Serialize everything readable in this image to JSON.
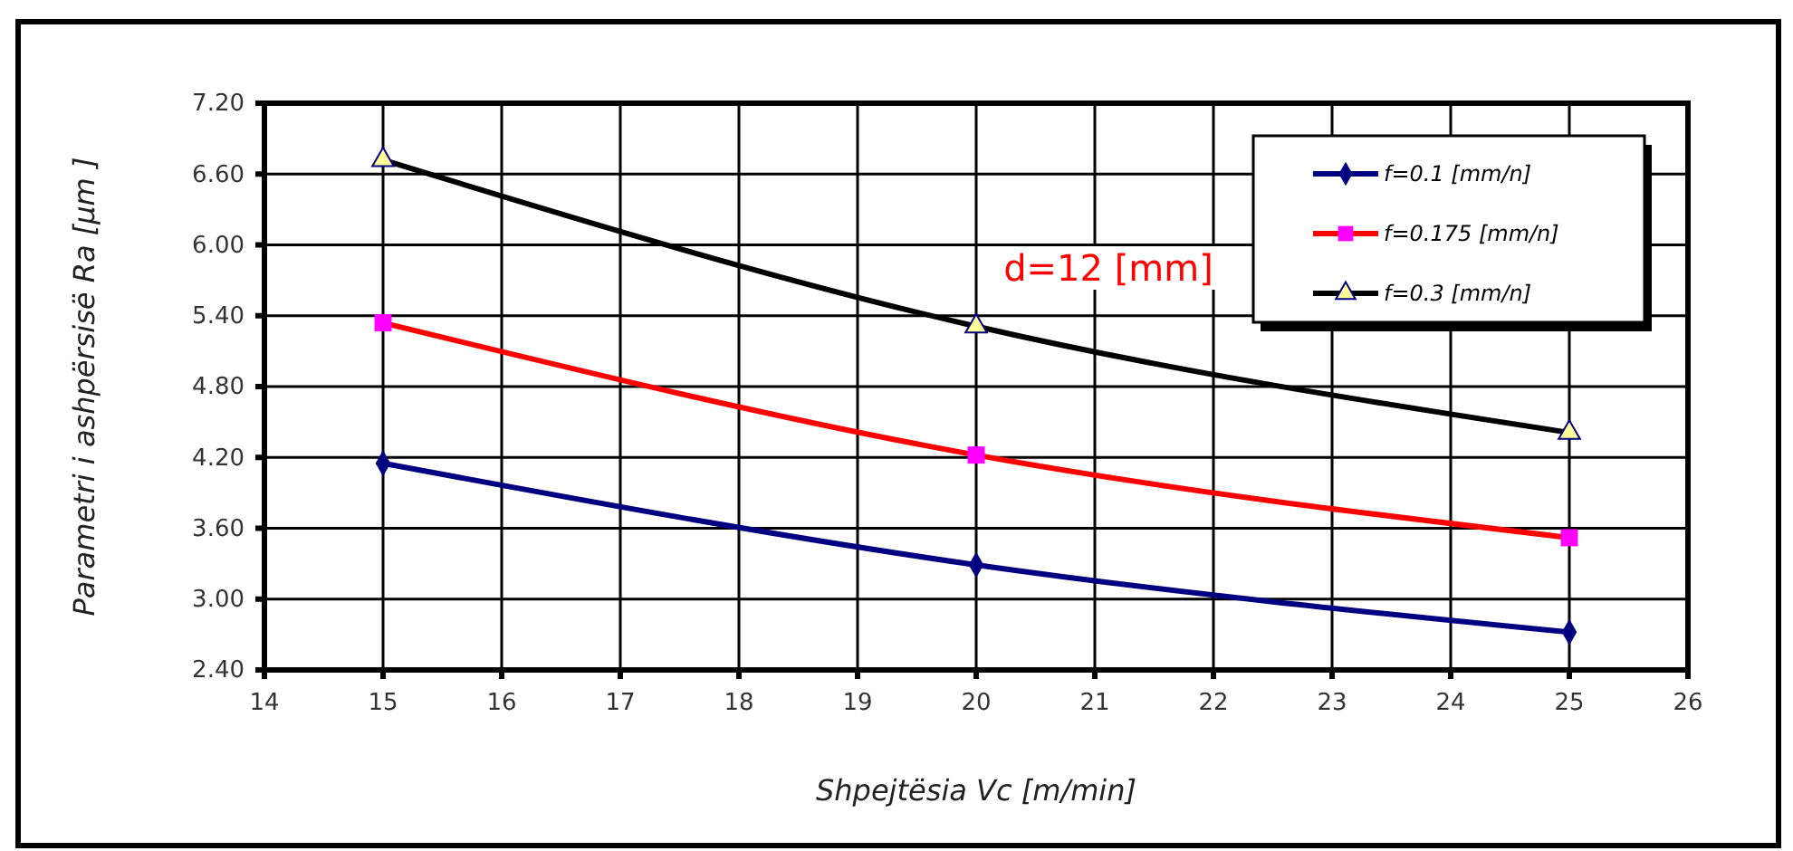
{
  "chart_data": {
    "type": "line",
    "xlabel": "Shpejtësia Vc [m/min]",
    "ylabel": "Parametri i ashpërsisë  Ra  [μm ]",
    "x": [
      15,
      20,
      25
    ],
    "series": [
      {
        "name": "f=0.1 [mm/n]",
        "color": "#000080",
        "marker": "diamond",
        "values": [
          4.15,
          3.29,
          2.72
        ]
      },
      {
        "name": "f=0.175 [mm/n]",
        "color": "#ff0000",
        "marker": "square",
        "values": [
          5.34,
          4.22,
          3.52
        ]
      },
      {
        "name": "f=0.3 [mm/n]",
        "color": "#000000",
        "marker": "triangle",
        "values": [
          6.72,
          5.31,
          4.41
        ]
      }
    ],
    "xlim": [
      14,
      26
    ],
    "xticks": [
      14,
      15,
      16,
      17,
      18,
      19,
      20,
      21,
      22,
      23,
      24,
      25,
      26
    ],
    "ylim": [
      2.4,
      7.2
    ],
    "yticks": [
      {
        "value": 2.4,
        "label": "2.40"
      },
      {
        "value": 3,
        "label": "3.00"
      },
      {
        "value": 3.6,
        "label": "3.60"
      },
      {
        "value": 4.2,
        "label": "4.20"
      },
      {
        "value": 4.8,
        "label": "4.80"
      },
      {
        "value": 5.4,
        "label": "5.40"
      },
      {
        "value": 6,
        "label": "6.00"
      },
      {
        "value": 6.6,
        "label": "6.60"
      },
      {
        "value": 7.2,
        "label": "7.20"
      }
    ],
    "grid": true,
    "legend": "top right",
    "line_style": "solid",
    "annotations": [
      "d=12 [mm]"
    ]
  }
}
